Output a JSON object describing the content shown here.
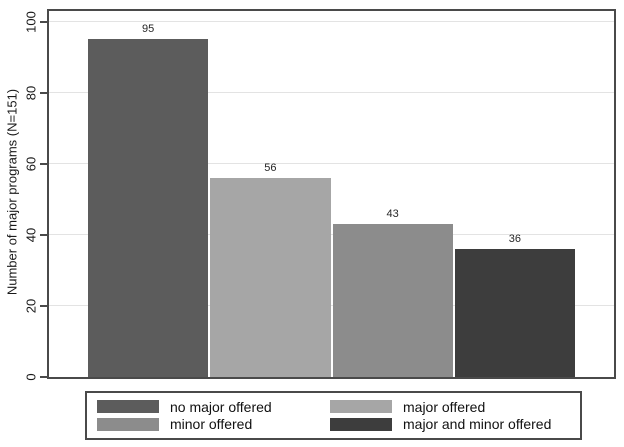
{
  "chart_data": {
    "type": "bar",
    "categories": [
      "no major offered",
      "major offered",
      "minor offered",
      "major and minor offered"
    ],
    "values": [
      95,
      56,
      43,
      36
    ],
    "bar_colors": [
      "#5c5c5c",
      "#a6a6a6",
      "#8c8c8c",
      "#3d3d3d"
    ],
    "title": "",
    "xlabel": "",
    "ylabel": "Number of major programs (N=151)",
    "ylim": [
      0,
      100
    ],
    "yticks": [
      0,
      20,
      40,
      60,
      80,
      100
    ],
    "grid": true,
    "legend_position": "bottom",
    "legend": [
      {
        "label": "no major offered",
        "color": "#5c5c5c"
      },
      {
        "label": "major offered",
        "color": "#a6a6a6"
      },
      {
        "label": "minor offered",
        "color": "#8c8c8c"
      },
      {
        "label": "major and minor offered",
        "color": "#3d3d3d"
      }
    ]
  },
  "colors": {
    "frame": "#4a4a4a",
    "gridline": "#e3e3e3",
    "background": "#ffffff",
    "text": "#1a1a1a"
  }
}
